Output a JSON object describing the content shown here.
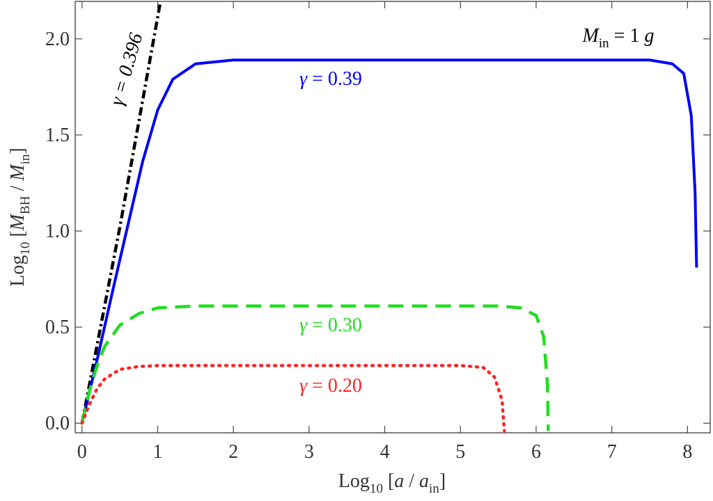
{
  "chart_data": {
    "type": "line",
    "x_label": [
      {
        "text": "Log"
      },
      {
        "text": "10",
        "sub": true
      },
      {
        "text": " ["
      },
      {
        "text": "a",
        "italic": true
      },
      {
        "text": " / "
      },
      {
        "text": "a",
        "italic": true
      },
      {
        "text": "in",
        "sub": true
      },
      {
        "text": "]"
      }
    ],
    "y_label": [
      {
        "text": "Log"
      },
      {
        "text": "10",
        "sub": true
      },
      {
        "text": " ["
      },
      {
        "text": "M",
        "italic": true
      },
      {
        "text": "BH",
        "sub": true
      },
      {
        "text": " / "
      },
      {
        "text": "M",
        "italic": true
      },
      {
        "text": "in",
        "sub": true
      },
      {
        "text": "]"
      }
    ],
    "xlim": [
      -0.09,
      8.3
    ],
    "ylim": [
      -0.05,
      2.195
    ],
    "xticks": [
      0,
      1,
      2,
      3,
      4,
      5,
      6,
      7,
      8
    ],
    "yticks": [
      {
        "value": 0,
        "label": "0.0"
      },
      {
        "value": 0.5,
        "label": "0.5"
      },
      {
        "value": 1,
        "label": "1.0"
      },
      {
        "value": 1.5,
        "label": "1.5"
      },
      {
        "value": 2,
        "label": "2.0"
      }
    ],
    "series": [
      {
        "color": "#000000",
        "dash": "dashdot",
        "x": [
          0,
          0.5,
          1.03
        ],
        "values": [
          0,
          1.02,
          2.18
        ]
      },
      {
        "color": "#0000ff",
        "dash": "solid",
        "x": [
          0,
          0.2,
          0.4,
          0.6,
          0.8,
          1.0,
          1.2,
          1.5,
          2,
          3,
          4,
          5,
          6,
          7,
          7.5,
          7.8,
          7.95,
          8.05,
          8.1,
          8.12
        ],
        "values": [
          0,
          0.33,
          0.68,
          1.02,
          1.36,
          1.63,
          1.79,
          1.87,
          1.89,
          1.89,
          1.89,
          1.89,
          1.89,
          1.89,
          1.89,
          1.87,
          1.82,
          1.6,
          1.2,
          0.81
        ]
      },
      {
        "color": "#22dd22",
        "dash": "dashed",
        "x": [
          0,
          0.1,
          0.2,
          0.3,
          0.5,
          0.75,
          1,
          1.5,
          2,
          3,
          4,
          5,
          5.5,
          5.8,
          6.0,
          6.1,
          6.15,
          6.16
        ],
        "values": [
          0,
          0.17,
          0.3,
          0.4,
          0.51,
          0.57,
          0.6,
          0.61,
          0.61,
          0.61,
          0.61,
          0.61,
          0.61,
          0.6,
          0.56,
          0.45,
          0.2,
          -0.04
        ]
      },
      {
        "color": "#ff2222",
        "dash": "dotted",
        "x": [
          0,
          0.1,
          0.2,
          0.3,
          0.5,
          0.75,
          1,
          2,
          3,
          4,
          5,
          5.3,
          5.45,
          5.55,
          5.58
        ],
        "values": [
          0,
          0.1,
          0.18,
          0.23,
          0.28,
          0.295,
          0.3,
          0.3,
          0.3,
          0.3,
          0.3,
          0.29,
          0.24,
          0.12,
          -0.04
        ]
      }
    ],
    "annotations": [
      {
        "color": "#000000",
        "parts": [
          {
            "text": "γ",
            "italic": true
          },
          {
            "text": " = 0.396",
            "italic": true
          }
        ]
      },
      {
        "color": "#0000ff",
        "parts": [
          {
            "text": "γ",
            "italic": true
          },
          {
            "text": " = 0.39"
          }
        ]
      },
      {
        "color": "#22dd22",
        "parts": [
          {
            "text": "γ",
            "italic": true
          },
          {
            "text": " = 0.30"
          }
        ]
      },
      {
        "color": "#ff2222",
        "parts": [
          {
            "text": "γ",
            "italic": true
          },
          {
            "text": " = 0.20"
          }
        ]
      },
      {
        "color": "#000000",
        "parts": [
          {
            "text": "M",
            "italic": true
          },
          {
            "text": "in",
            "sub": true
          },
          {
            "text": " = 1 "
          },
          {
            "text": "g",
            "italic": true
          }
        ]
      }
    ]
  }
}
